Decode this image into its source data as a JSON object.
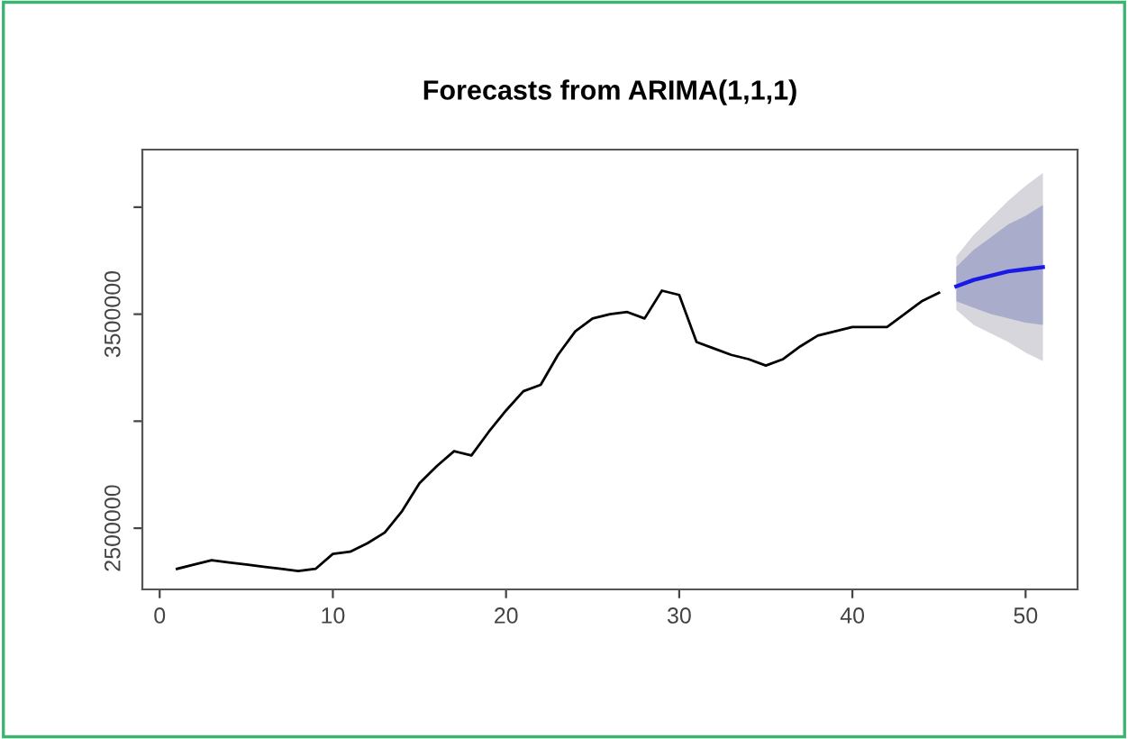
{
  "chart_data": {
    "type": "line",
    "title": "Forecasts from ARIMA(1,1,1)",
    "xlim": [
      -1,
      53
    ],
    "xticks": [
      0,
      10,
      20,
      30,
      40,
      50
    ],
    "ylim": [
      2214000,
      4269000
    ],
    "yticks": [
      2500000,
      {
        "value": 3000000,
        "label": null
      },
      3500000,
      {
        "value": 4000000,
        "label": null
      }
    ],
    "grid": false,
    "legend": false,
    "series": [
      {
        "color": "#000000",
        "x": [
          1,
          2,
          3,
          4,
          5,
          6,
          7,
          8,
          9,
          10,
          11,
          12,
          13,
          14,
          15,
          16,
          17,
          18,
          19,
          20,
          21,
          22,
          23,
          24,
          25,
          26,
          27,
          28,
          29,
          30,
          31,
          32,
          33,
          34,
          35,
          36,
          37,
          38,
          39,
          40,
          41,
          42,
          43,
          44,
          45
        ],
        "values": [
          2310000,
          2330000,
          2350000,
          2340000,
          2330000,
          2320000,
          2310000,
          2300000,
          2310000,
          2380000,
          2390000,
          2430000,
          2480000,
          2580000,
          2710000,
          2790000,
          2860000,
          2840000,
          2950000,
          3050000,
          3140000,
          3170000,
          3310000,
          3420000,
          3480000,
          3500000,
          3510000,
          3480000,
          3610000,
          3590000,
          3370000,
          3340000,
          3310000,
          3290000,
          3260000,
          3290000,
          3350000,
          3400000,
          3420000,
          3440000,
          3440000,
          3440000,
          3500000,
          3560000,
          3600000
        ]
      },
      {
        "color": "#d6d6dc",
        "x": [
          46,
          47,
          48,
          49,
          50,
          51
        ],
        "values": [
          null,
          null,
          null,
          null,
          null,
          null
        ],
        "lower": [
          3520000,
          3450000,
          3410000,
          3370000,
          3320000,
          3280000
        ],
        "upper": [
          3770000,
          3870000,
          3950000,
          4030000,
          4100000,
          4160000
        ]
      },
      {
        "color": "#1a1ae6",
        "x": [
          46,
          47,
          48,
          49,
          50,
          51
        ],
        "values": [
          3630000,
          3660000,
          3680000,
          3700000,
          3710000,
          3720000
        ],
        "lower": [
          3560000,
          3530000,
          3500000,
          3480000,
          3460000,
          3450000
        ],
        "upper": [
          3720000,
          3800000,
          3860000,
          3920000,
          3960000,
          4010000
        ]
      }
    ]
  }
}
